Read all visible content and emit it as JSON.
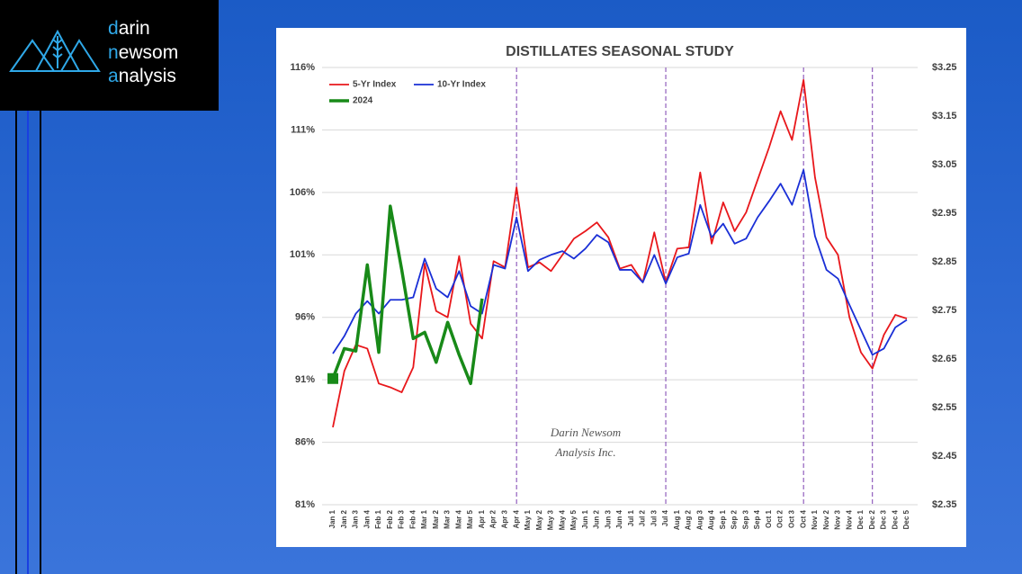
{
  "logo": {
    "lines": [
      "darin",
      "newsom",
      "analysis"
    ]
  },
  "chart_data": {
    "type": "line",
    "title": "DISTILLATES SEASONAL STUDY",
    "annotations": [
      "Darin Newsom",
      "Analysis Inc."
    ],
    "categories": [
      "Jan 1",
      "Jan 2",
      "Jan 3",
      "Jan 4",
      "Feb 1",
      "Feb 2",
      "Feb 3",
      "Feb 4",
      "Mar 1",
      "Mar 2",
      "Mar 3",
      "Mar 4",
      "Mar 5",
      "Apr 1",
      "Apr 2",
      "Apr 3",
      "Apr 4",
      "May 1",
      "May 2",
      "May 3",
      "May 4",
      "May 5",
      "Jun 1",
      "Jun 2",
      "Jun 3",
      "Jun 4",
      "Jul 1",
      "Jul 2",
      "Jul 3",
      "Jul 4",
      "Aug 1",
      "Aug 2",
      "Aug 3",
      "Aug 4",
      "Sep 1",
      "Sep 2",
      "Sep 3",
      "Sep 4",
      "Oct 1",
      "Oct 2",
      "Oct 3",
      "Oct 4",
      "Nov 1",
      "Nov 2",
      "Nov 3",
      "Nov 4",
      "Dec 1",
      "Dec 2",
      "Dec 3",
      "Dec 4",
      "Dec 5"
    ],
    "series": [
      {
        "name": "5-Yr Index",
        "color": "#e8171b",
        "values": [
          87.2,
          91.7,
          93.8,
          93.5,
          90.7,
          90.4,
          90.0,
          92.0,
          100.3,
          96.5,
          96.0,
          100.9,
          95.5,
          94.3,
          100.5,
          100.0,
          106.4,
          100.0,
          100.4,
          99.7,
          101.0,
          102.3,
          102.9,
          103.6,
          102.4,
          99.9,
          100.2,
          98.8,
          102.8,
          98.8,
          101.5,
          101.6,
          107.6,
          101.9,
          105.2,
          102.9,
          104.4,
          107.0,
          109.6,
          112.5,
          110.2,
          115.0,
          107.2,
          102.4,
          101.0,
          96.0,
          93.2,
          91.9,
          94.6,
          96.2,
          95.9
        ]
      },
      {
        "name": "10-Yr Index",
        "color": "#1a2fd6",
        "values": [
          93.1,
          94.5,
          96.3,
          97.3,
          96.3,
          97.4,
          97.4,
          97.6,
          100.7,
          98.3,
          97.6,
          99.7,
          96.9,
          96.3,
          100.2,
          99.9,
          104.0,
          99.7,
          100.6,
          101.0,
          101.3,
          100.7,
          101.5,
          102.6,
          102.0,
          99.8,
          99.8,
          98.8,
          101.0,
          98.7,
          100.8,
          101.1,
          105.0,
          102.4,
          103.5,
          101.9,
          102.3,
          104.0,
          105.3,
          106.7,
          105.0,
          107.8,
          102.5,
          99.8,
          99.1,
          97.0,
          95.0,
          93.0,
          93.5,
          95.2,
          95.8
        ]
      },
      {
        "name": "2024",
        "color": "#188a18",
        "values": [
          91.1,
          93.5,
          93.3,
          100.2,
          93.2,
          104.9,
          99.8,
          94.3,
          94.8,
          92.4,
          95.6,
          93.0,
          90.7,
          97.5,
          null,
          null,
          null,
          null,
          null,
          null,
          null,
          null,
          null,
          null,
          null,
          null,
          null,
          null,
          null,
          null,
          null,
          null,
          null,
          null,
          null,
          null,
          null,
          null,
          null,
          null,
          null,
          null,
          null,
          null,
          null,
          null,
          null,
          null,
          null,
          null,
          null
        ]
      }
    ],
    "ylim": [
      81,
      116
    ],
    "yticks": [
      {
        "value": 81,
        "label": "81%"
      },
      {
        "value": 86,
        "label": "86%"
      },
      {
        "value": 91,
        "label": "91%"
      },
      {
        "value": 96,
        "label": "96%"
      },
      {
        "value": 101,
        "label": "101%"
      },
      {
        "value": 106,
        "label": "106%"
      },
      {
        "value": 111,
        "label": "111%"
      },
      {
        "value": 116,
        "label": "116%"
      }
    ],
    "y2lim": [
      2.35,
      3.25
    ],
    "y2ticks": [
      {
        "value": 2.35,
        "label": "$2.35"
      },
      {
        "value": 2.45,
        "label": "$2.45"
      },
      {
        "value": 2.55,
        "label": "$2.55"
      },
      {
        "value": 2.65,
        "label": "$2.65"
      },
      {
        "value": 2.75,
        "label": "$2.75"
      },
      {
        "value": 2.85,
        "label": "$2.85"
      },
      {
        "value": 2.95,
        "label": "$2.95"
      },
      {
        "value": 3.05,
        "label": "$3.05"
      },
      {
        "value": 3.15,
        "label": "$3.15"
      },
      {
        "value": 3.25,
        "label": "$3.25"
      }
    ],
    "vertical_lines": [
      "Apr 4",
      "Jul 4",
      "Oct 4",
      "Dec 2"
    ],
    "grid": true,
    "legend": "top-left"
  }
}
